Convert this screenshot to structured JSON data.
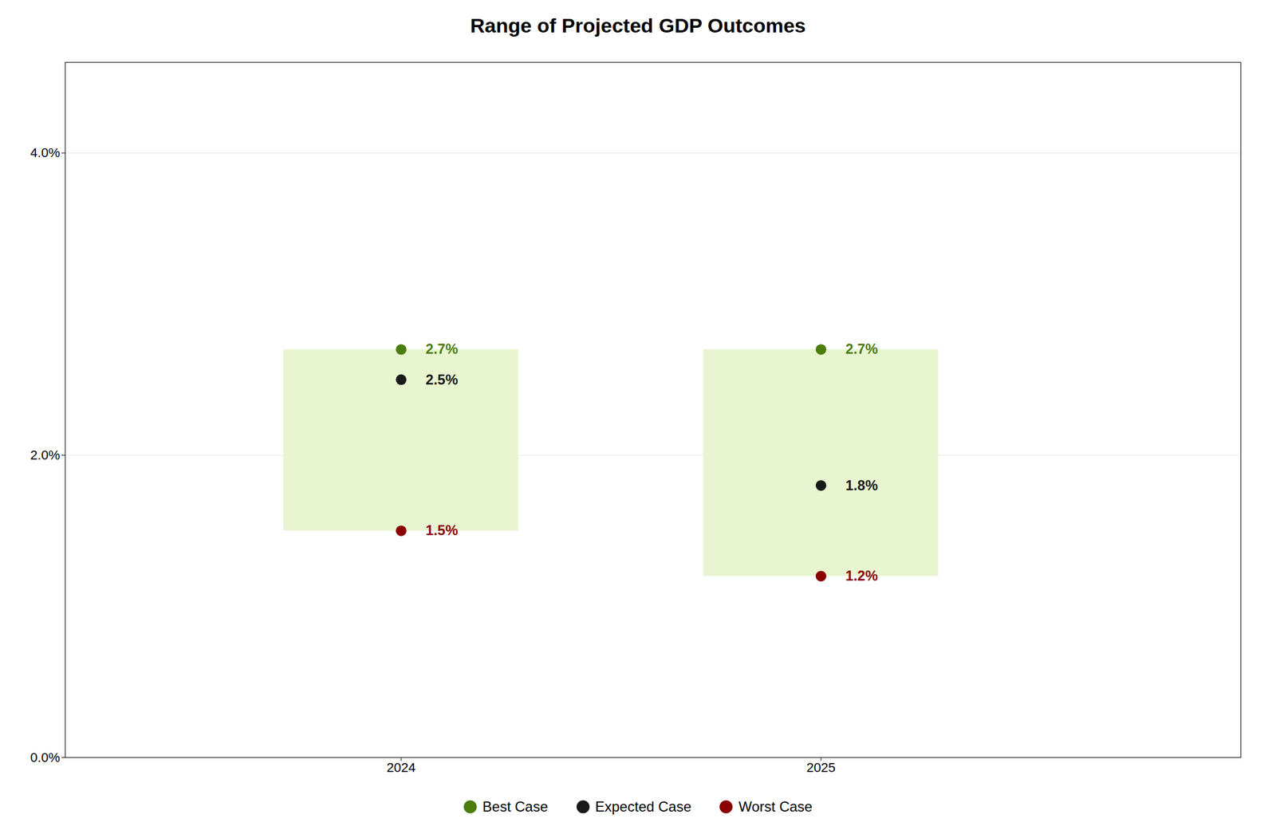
{
  "chart_data": {
    "type": "dot",
    "title": "Range of Projected GDP Outcomes",
    "x": [
      2024,
      2025
    ],
    "series": [
      {
        "name": "Best Case",
        "color": "#4d7c0f",
        "values": [
          2.7,
          2.7
        ],
        "value_labels": [
          "2.7%",
          "2.7%"
        ]
      },
      {
        "name": "Expected Case",
        "color": "#1a1a1a",
        "values": [
          2.5,
          1.8
        ],
        "value_labels": [
          "2.5%",
          "1.8%"
        ]
      },
      {
        "name": "Worst Case",
        "color": "#8b0000",
        "values": [
          1.5,
          1.2
        ],
        "value_labels": [
          "1.5%",
          "1.2%"
        ]
      }
    ],
    "color": "#e8f5d0",
    "xlim": [
      2023.2,
      2026.0
    ],
    "xticks": [
      2024,
      2025
    ],
    "ylim": [
      0.0,
      4.6
    ],
    "yticks": [
      {
        "value": 0.0,
        "label": "0.0%"
      },
      {
        "value": 2.0,
        "label": "2.0%"
      },
      {
        "value": 4.0,
        "label": "4.0%"
      }
    ],
    "grid": true,
    "legend": "bottom",
    "data_labels": true
  }
}
